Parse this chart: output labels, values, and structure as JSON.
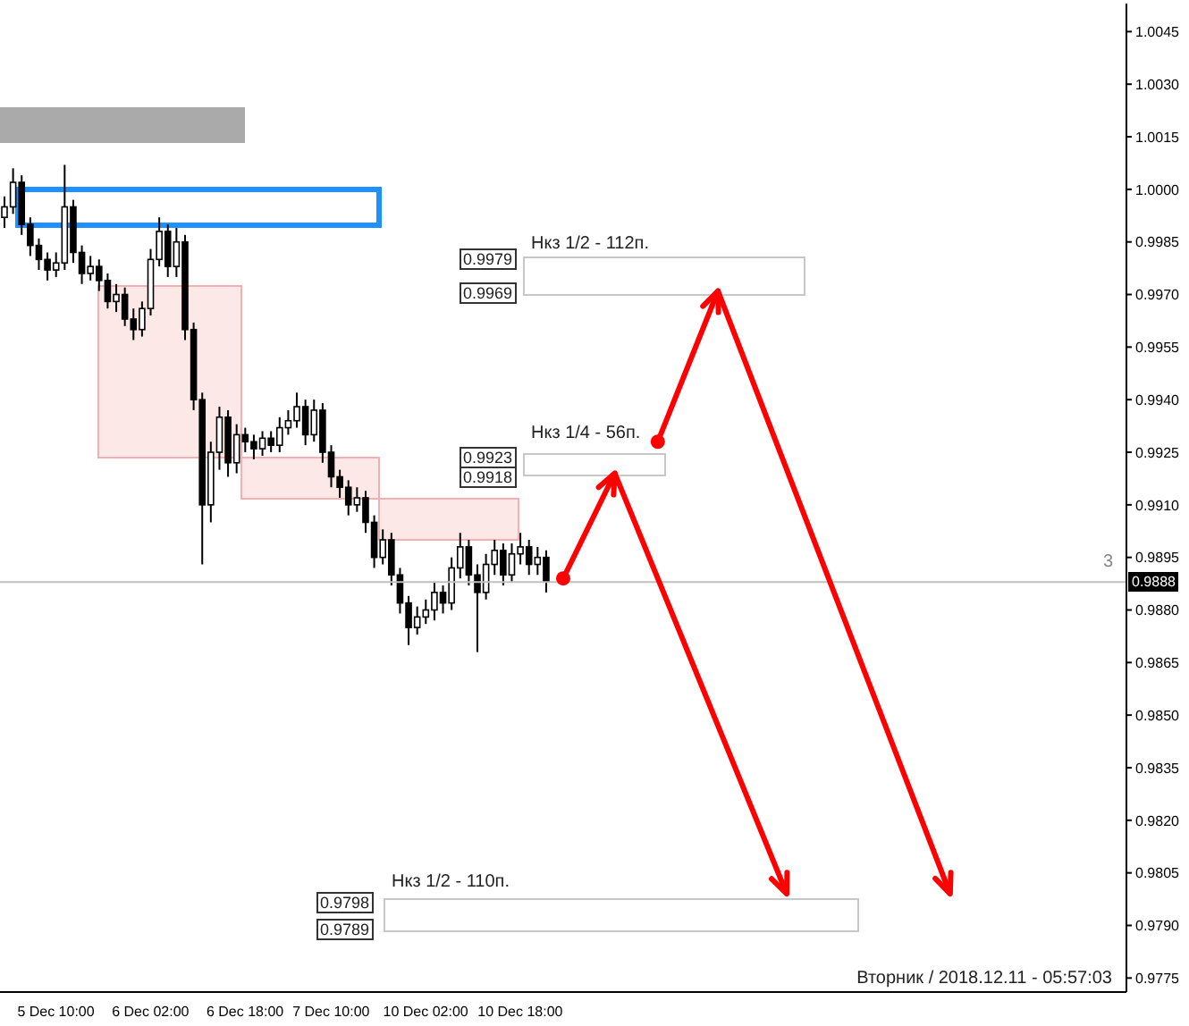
{
  "chart_data": {
    "type": "candlestick",
    "categories": [
      null,
      null,
      null,
      null,
      null,
      null,
      "5 Dec 10:00",
      null,
      null,
      null,
      null,
      null,
      null,
      null,
      null,
      null,
      null,
      "6 Dec 02:00",
      null,
      null,
      null,
      null,
      null,
      null,
      null,
      null,
      null,
      null,
      "6 Dec 18:00",
      null,
      null,
      null,
      null,
      null,
      null,
      null,
      null,
      null,
      "7 Dec 10:00",
      null,
      null,
      null,
      null,
      null,
      null,
      null,
      null,
      null,
      null,
      "10 Dec 02:00",
      null,
      null,
      null,
      null,
      null,
      null,
      null,
      null,
      null,
      null,
      "10 Dec 18:00",
      null,
      null,
      null,
      null,
      null,
      null,
      null,
      null,
      null,
      null,
      null,
      null,
      null,
      null,
      null,
      null,
      null,
      null,
      null,
      null,
      null,
      null,
      null,
      null,
      null,
      null,
      null,
      null,
      null,
      null,
      null,
      null,
      null,
      null,
      null,
      null,
      null,
      null,
      null,
      null,
      null,
      null,
      null,
      null,
      null,
      null,
      null,
      null,
      null,
      null,
      null,
      null,
      null,
      null,
      null,
      null,
      null,
      null,
      null,
      null,
      null,
      null,
      null,
      null,
      null,
      null,
      null,
      null,
      null,
      null
    ],
    "ylim": [
      0.9771,
      1.0053
    ],
    "yticks": [
      0.9775,
      {
        "value": 0.979,
        "label": "0.9790"
      },
      0.9805,
      {
        "value": 0.982,
        "label": "0.9820"
      },
      0.9835,
      {
        "value": 0.985,
        "label": "0.9850"
      },
      0.9865,
      {
        "value": 0.988,
        "label": "0.9880"
      },
      0.9895,
      {
        "value": 0.991,
        "label": "0.9910"
      },
      0.9925,
      {
        "value": 0.994,
        "label": "0.9940"
      },
      0.9955,
      {
        "value": 0.997,
        "label": "0.9970"
      },
      0.9985,
      {
        "value": 1,
        "label": "1.0000"
      },
      1.0015,
      {
        "value": 1.003,
        "label": "1.0030"
      },
      1.0045
    ],
    "grid": false,
    "series": [
      {
        "color": "#000000",
        "ohlc": [
          [
            0.9992,
            0.9998,
            0.9989,
            0.9995
          ],
          [
            0.9995,
            1.0006,
            0.9993,
            1.0002
          ],
          [
            1.0002,
            1.0004,
            0.9987,
            0.999
          ],
          [
            0.999,
            0.9992,
            0.9981,
            0.9984
          ],
          [
            0.9984,
            0.9986,
            0.9977,
            0.998
          ],
          [
            0.998,
            0.9982,
            0.9974,
            0.9977
          ],
          [
            0.9977,
            0.9982,
            0.9975,
            0.9979
          ],
          [
            0.9979,
            1.0007,
            0.9977,
            0.9995
          ],
          [
            0.9995,
            0.9997,
            0.9979,
            0.9982
          ],
          [
            0.9982,
            0.9984,
            0.9973,
            0.9976
          ],
          [
            0.9976,
            0.9981,
            0.9974,
            0.9978
          ],
          [
            0.9978,
            0.998,
            0.9971,
            0.9974
          ],
          [
            0.9974,
            0.9976,
            0.9966,
            0.9968
          ],
          [
            0.9968,
            0.9973,
            0.9965,
            0.997
          ],
          [
            0.997,
            0.9972,
            0.9961,
            0.9963
          ],
          [
            0.9963,
            0.9966,
            0.9957,
            0.996
          ],
          [
            0.996,
            0.9968,
            0.9958,
            0.9966
          ],
          [
            0.9966,
            0.9983,
            0.9964,
            0.998
          ],
          [
            0.998,
            0.9992,
            0.9978,
            0.9988
          ],
          [
            0.9988,
            0.999,
            0.9975,
            0.9978
          ],
          [
            0.9978,
            0.9989,
            0.9975,
            0.9985
          ],
          [
            0.9985,
            0.9987,
            0.9957,
            0.996
          ],
          [
            0.996,
            0.9962,
            0.9937,
            0.994
          ],
          [
            0.994,
            0.9942,
            0.9893,
            0.991
          ],
          [
            0.991,
            0.9928,
            0.9905,
            0.9925
          ],
          [
            0.9925,
            0.9938,
            0.992,
            0.9935
          ],
          [
            0.9935,
            0.9937,
            0.9918,
            0.9922
          ],
          [
            0.9922,
            0.9933,
            0.9919,
            0.993
          ],
          [
            0.993,
            0.9932,
            0.9925,
            0.9928
          ],
          [
            0.9928,
            0.993,
            0.9923,
            0.9926
          ],
          [
            0.9926,
            0.9931,
            0.9924,
            0.9929
          ],
          [
            0.9929,
            0.9931,
            0.9925,
            0.9927
          ],
          [
            0.9927,
            0.9935,
            0.9925,
            0.9932
          ],
          [
            0.9932,
            0.9937,
            0.993,
            0.9934
          ],
          [
            0.9934,
            0.9942,
            0.9932,
            0.9938
          ],
          [
            0.9938,
            0.994,
            0.9927,
            0.993
          ],
          [
            0.993,
            0.994,
            0.9928,
            0.9937
          ],
          [
            0.9937,
            0.9939,
            0.9922,
            0.9925
          ],
          [
            0.9925,
            0.9927,
            0.9915,
            0.9918
          ],
          [
            0.9918,
            0.992,
            0.9912,
            0.9915
          ],
          [
            0.9915,
            0.9917,
            0.9907,
            0.991
          ],
          [
            0.991,
            0.9915,
            0.9908,
            0.9912
          ],
          [
            0.9912,
            0.9914,
            0.9902,
            0.9905
          ],
          [
            0.9905,
            0.9907,
            0.9892,
            0.9895
          ],
          [
            0.9895,
            0.9903,
            0.9893,
            0.99
          ],
          [
            0.99,
            0.9902,
            0.9887,
            0.989
          ],
          [
            0.989,
            0.9892,
            0.9879,
            0.9882
          ],
          [
            0.9882,
            0.9884,
            0.987,
            0.9875
          ],
          [
            0.9875,
            0.9881,
            0.9873,
            0.9878
          ],
          [
            0.9878,
            0.9883,
            0.9876,
            0.988
          ],
          [
            0.988,
            0.9888,
            0.9877,
            0.9885
          ],
          [
            0.9885,
            0.9887,
            0.9879,
            0.9882
          ],
          [
            0.9882,
            0.9895,
            0.988,
            0.9892
          ],
          [
            0.9892,
            0.9902,
            0.9889,
            0.9898
          ],
          [
            0.9898,
            0.99,
            0.9887,
            0.989
          ],
          [
            0.989,
            0.9893,
            0.9868,
            0.9885
          ],
          [
            0.9885,
            0.9896,
            0.9883,
            0.9893
          ],
          [
            0.9893,
            0.99,
            0.989,
            0.9897
          ],
          [
            0.9897,
            0.9899,
            0.9887,
            0.989
          ],
          [
            0.989,
            0.9899,
            0.9888,
            0.9896
          ],
          [
            0.9896,
            0.9902,
            0.9893,
            0.9898
          ],
          [
            0.9898,
            0.99,
            0.989,
            0.9893
          ],
          [
            0.9893,
            0.9898,
            0.989,
            0.9895
          ],
          [
            0.9895,
            0.9897,
            0.9885,
            0.9888
          ],
          null,
          null,
          null,
          null,
          null,
          null,
          null,
          null,
          null,
          null,
          null,
          null,
          null,
          null,
          null,
          null,
          null,
          null,
          null,
          null,
          null,
          null,
          null,
          null,
          null,
          null,
          null,
          null,
          null,
          null,
          null,
          null,
          null,
          null,
          null,
          null,
          null,
          null,
          null,
          null,
          null,
          null,
          null,
          null,
          null,
          null,
          null,
          null,
          null,
          null,
          null,
          null,
          null,
          null,
          null,
          null,
          null,
          null,
          null,
          null,
          null,
          null,
          null,
          null,
          null,
          null,
          null
        ]
      },
      {
        "type": "line",
        "color": "#ff0000",
        "line_style": "solid",
        "values": [
          null,
          null,
          null,
          null,
          null,
          null,
          null,
          null,
          null,
          null,
          null,
          null,
          null,
          null,
          null,
          null,
          null,
          null,
          null,
          null,
          null,
          null,
          null,
          null,
          null,
          null,
          null,
          null,
          null,
          null,
          null,
          null,
          null,
          null,
          null,
          null,
          null,
          null,
          null,
          null,
          null,
          null,
          null,
          null,
          null,
          null,
          null,
          null,
          null,
          null,
          null,
          null,
          null,
          null,
          null,
          null,
          null,
          null,
          null,
          null,
          null,
          null,
          null,
          null,
          null,
          0.9889,
          null,
          null,
          null,
          null,
          null,
          0.9919,
          null,
          null,
          null,
          null,
          null,
          null,
          null,
          null,
          null,
          null,
          null,
          null,
          null,
          null,
          null,
          null,
          null,
          null,
          null,
          0.9799,
          null,
          null,
          null,
          null,
          null,
          null,
          null,
          null,
          null,
          null,
          null,
          null,
          null,
          null,
          null,
          null,
          null,
          null,
          null,
          null,
          null,
          null,
          null,
          null,
          null,
          null,
          null,
          null,
          null,
          null,
          null,
          null,
          null,
          null,
          null,
          null,
          null,
          null,
          null
        ]
      },
      {
        "type": "line",
        "color": "#ff0000",
        "line_style": "solid",
        "values": [
          null,
          null,
          null,
          null,
          null,
          null,
          null,
          null,
          null,
          null,
          null,
          null,
          null,
          null,
          null,
          null,
          null,
          null,
          null,
          null,
          null,
          null,
          null,
          null,
          null,
          null,
          null,
          null,
          null,
          null,
          null,
          null,
          null,
          null,
          null,
          null,
          null,
          null,
          null,
          null,
          null,
          null,
          null,
          null,
          null,
          null,
          null,
          null,
          null,
          null,
          null,
          null,
          null,
          null,
          null,
          null,
          null,
          null,
          null,
          null,
          null,
          null,
          null,
          null,
          null,
          null,
          null,
          null,
          null,
          null,
          null,
          null,
          null,
          null,
          null,
          null,
          0.9928,
          null,
          null,
          null,
          null,
          null,
          null,
          0.9971,
          null,
          null,
          null,
          null,
          null,
          null,
          null,
          null,
          null,
          null,
          null,
          null,
          null,
          null,
          null,
          null,
          null,
          null,
          null,
          null,
          null,
          null,
          null,
          null,
          null,
          null,
          0.9799,
          null,
          null,
          null,
          null,
          null,
          null,
          null,
          null,
          null,
          null,
          null,
          null,
          null,
          null,
          null,
          null,
          null,
          null,
          null,
          null
        ]
      }
    ],
    "ref_lines": [
      {
        "axis": "y",
        "value": 0.9888,
        "label": "0.9888",
        "line_style": "solid",
        "color": "#c0c0c0"
      }
    ],
    "annotations": [
      "3",
      "Нкз 1/2 - 112п.",
      "0.9979",
      "0.9969",
      "Нкз 1/4 - 56п.",
      "0.9923",
      "0.9918",
      "Нкз 1/2 - 110п.",
      "0.9798",
      "0.9789",
      "Вторник / 2018.12.11 - 05:57:03"
    ]
  }
}
